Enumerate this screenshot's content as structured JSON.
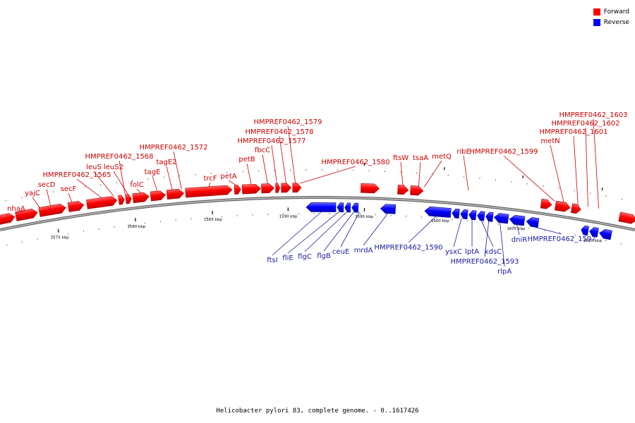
{
  "legend": [
    {
      "label": "Forward",
      "color": "#ff0000"
    },
    {
      "label": "Reverse",
      "color": "#0000ff"
    }
  ],
  "caption": "Helicobacter pylori 83, complete genome. - 0..1617426",
  "colors": {
    "forward": "#ff0000",
    "reverse": "#0000ff",
    "backbone": "#888888",
    "forward_label": "#cc0000",
    "reverse_label": "#1a1aa0"
  },
  "scale": {
    "unit": "kbp",
    "labels": [
      "1575 kbp",
      "1580 kbp",
      "1585 kbp",
      "1590 kbp",
      "1595 kbp",
      "1600 kbp",
      "1605 kbp",
      "1610 kbp"
    ]
  },
  "forward_labels": [
    "nhaA",
    "yajC",
    "secD",
    "secF",
    "HMPREF0462_1565",
    "leuS",
    "HMPREF0462_1568",
    "leuS2",
    "folC",
    "tagE",
    "tagE2",
    "HMPREF0462_1572",
    "trcF",
    "petA",
    "petB",
    "fbcC",
    "HMPREF0462_1577",
    "HMPREF0462_1578",
    "HMPREF0462_1579",
    "HMPREF0462_1580",
    "ftsW",
    "tsaA",
    "metQ",
    "ribE",
    "HMPREF0462_1599",
    "metN",
    "HMPREF0462_1601",
    "HMPREF0462_1602",
    "HMPREF0462_1603"
  ],
  "reverse_labels": [
    "ftsI",
    "fliE",
    "flgC",
    "flgB",
    "ceuE",
    "mrdA",
    "HMPREF0462_1590",
    "ysxC",
    "lptA",
    "kdsC",
    "HMPREF0462_1593",
    "rlpA",
    "dniR",
    "HMPREF0462_1597"
  ]
}
